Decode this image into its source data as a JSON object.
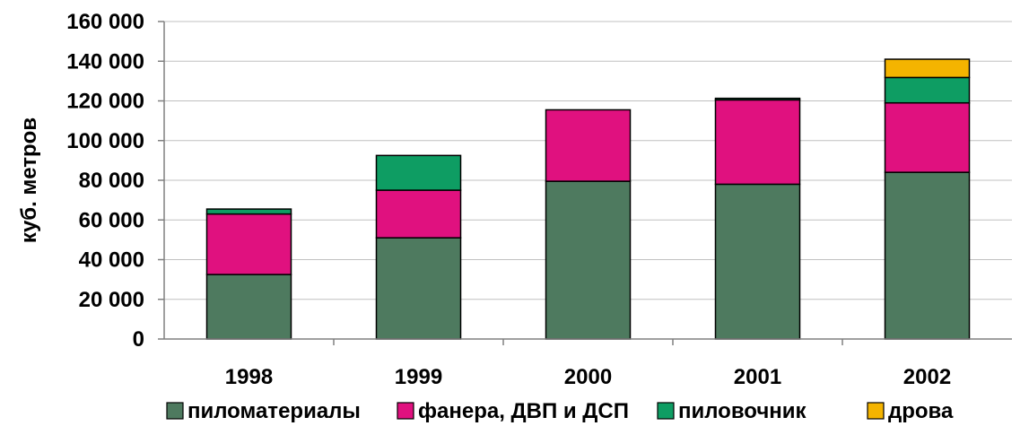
{
  "chart_data": {
    "type": "bar",
    "stacked": true,
    "title": "",
    "xlabel": "",
    "ylabel": "куб. метров",
    "ylim": [
      0,
      160000
    ],
    "yticks": [
      0,
      20000,
      40000,
      60000,
      80000,
      100000,
      120000,
      140000,
      160000
    ],
    "ytick_labels": [
      "0",
      "20 000",
      "40 000",
      "60 000",
      "80 000",
      "100 000",
      "120 000",
      "140 000",
      "160 000"
    ],
    "categories": [
      "1998",
      "1999",
      "2000",
      "2001",
      "2002"
    ],
    "grid": true,
    "legend_position": "bottom",
    "series": [
      {
        "name": "пиломатериалы",
        "color": "#4e7a5f",
        "values": [
          32500,
          51000,
          79500,
          78000,
          84000
        ]
      },
      {
        "name": "фанера, ДВП и ДСП",
        "color": "#e0117f",
        "values": [
          30500,
          24000,
          36000,
          42500,
          35000
        ]
      },
      {
        "name": "пиловочник",
        "color": "#0e9d63",
        "values": [
          2500,
          17500,
          0,
          800,
          12800
        ]
      },
      {
        "name": "дрова",
        "color": "#f4b400",
        "values": [
          0,
          0,
          0,
          0,
          9200
        ]
      }
    ]
  }
}
